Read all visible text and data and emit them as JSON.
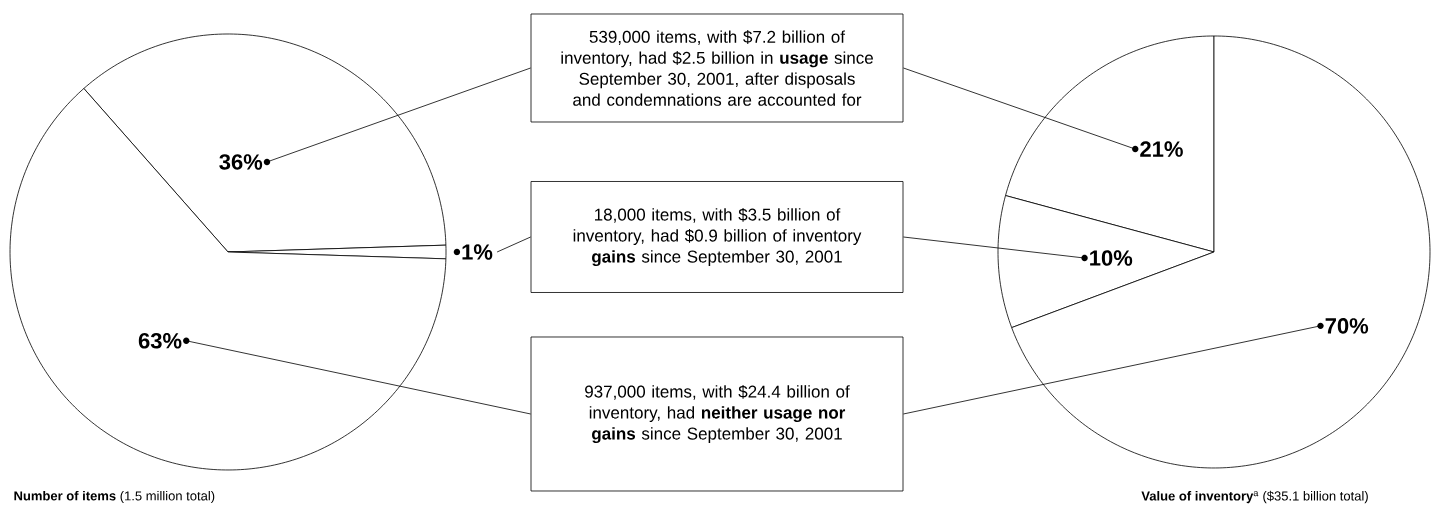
{
  "chart_data": [
    {
      "type": "pie",
      "title": "**Number of items** (1.5 million total)",
      "categories": [
        null,
        null,
        null
      ],
      "values": [
        36,
        1,
        63
      ],
      "value_labels": [
        "36%",
        "1%",
        "63%"
      ],
      "colors": [
        "#ffffff",
        "#ffffff",
        "#ffffff"
      ]
    },
    {
      "type": "pie",
      "title": "**Value of inventory**$^{a}$ ($35.1 billion total)",
      "categories": [
        null,
        null,
        null
      ],
      "values": [
        21,
        10,
        70
      ],
      "value_labels": [
        "21%",
        "10%",
        "70%"
      ],
      "colors": [
        "#ffffff",
        "#ffffff",
        "#ffffff"
      ]
    },
    {
      "type": "other",
      "annotations": [
        "539,000 items, with $7.2 billion of inventory, had $2.5 billion in **usage** since September 30, 2001, after disposals and condemnations are accounted for",
        "18,000 items, with $3.5 billion of inventory, had $0.9 billion of inventory **gains** since September 30, 2001",
        "937,000 items, with $24.4 billion of inventory, had **neither usage nor gains** since September 30, 2001"
      ]
    }
  ]
}
